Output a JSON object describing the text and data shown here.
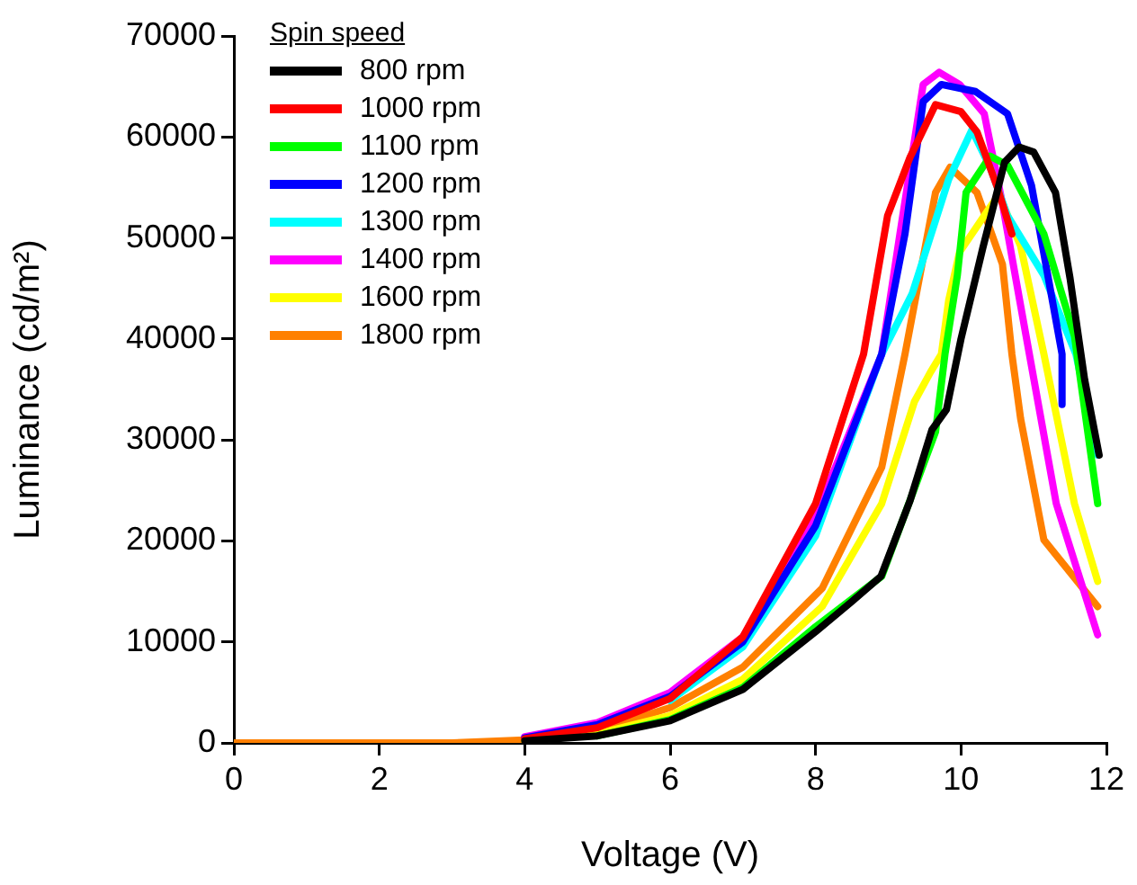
{
  "chart_data": {
    "type": "line",
    "xlabel": "Voltage (V)",
    "ylabel": "Luminance (cd/m²)",
    "legend_title": "Spin speed",
    "legend": "top left",
    "grid": false,
    "marker": "none",
    "line_style": "solid",
    "xlim": [
      0,
      12
    ],
    "xticks": [
      0,
      2,
      4,
      6,
      8,
      10,
      12
    ],
    "ylim": [
      0,
      70000
    ],
    "yticks": [
      0,
      10000,
      20000,
      30000,
      40000,
      50000,
      60000,
      70000
    ],
    "series": [
      {
        "name": "800 rpm",
        "color": "#000000",
        "x": [
          4,
          5,
          6,
          7,
          8,
          8.5,
          8.9,
          9.3,
          9.6,
          9.8,
          10,
          10.3,
          10.6,
          10.8,
          11,
          11.3,
          11.5,
          11.7,
          11.9
        ],
        "values": [
          200,
          700,
          2200,
          5300,
          11000,
          14000,
          16500,
          24000,
          31000,
          33000,
          40000,
          49000,
          57500,
          59000,
          58500,
          54500,
          46000,
          36000,
          28500
        ]
      },
      {
        "name": "1000 rpm",
        "color": "#ff0000",
        "x": [
          4,
          5,
          6,
          7,
          8,
          8.66,
          8.99,
          9.3,
          9.65,
          10,
          10.22,
          10.5,
          10.7
        ],
        "values": [
          400,
          1500,
          4400,
          10500,
          23700,
          38500,
          52200,
          58000,
          63200,
          62500,
          60500,
          55000,
          50400
        ]
      },
      {
        "name": "1100 rpm",
        "color": "#00ff00",
        "x": [
          5,
          6,
          7,
          8,
          8.91,
          9.65,
          9.78,
          9.95,
          10.07,
          10.4,
          10.64,
          11.14,
          11.56,
          11.88
        ],
        "values": [
          700,
          2300,
          5500,
          11500,
          16500,
          30800,
          38500,
          46300,
          54500,
          58100,
          57200,
          50400,
          40300,
          23700
        ]
      },
      {
        "name": "1200 rpm",
        "color": "#0000ff",
        "x": [
          4,
          5,
          6,
          7,
          8,
          8.91,
          9.23,
          9.48,
          9.73,
          10.2,
          10.64,
          10.97,
          11.39,
          11.39
        ],
        "values": [
          500,
          1800,
          4600,
          10000,
          21500,
          38500,
          50400,
          63500,
          65200,
          64500,
          62300,
          55200,
          38500,
          33500
        ]
      },
      {
        "name": "1300 rpm",
        "color": "#00ffff",
        "x": [
          6,
          7,
          8,
          8.91,
          9.33,
          9.83,
          10.15,
          10.4,
          10.64,
          11.14,
          11.58,
          11.88
        ],
        "values": [
          4200,
          9500,
          20500,
          38500,
          44500,
          55800,
          60700,
          57000,
          52200,
          46300,
          38500,
          28500
        ]
      },
      {
        "name": "1400 rpm",
        "color": "#ff00ff",
        "x": [
          4,
          5,
          6,
          7,
          8,
          8.91,
          9.16,
          9.48,
          9.7,
          9.98,
          10.32,
          10.57,
          10.82,
          11.31,
          11.88
        ],
        "values": [
          600,
          2000,
          5000,
          10500,
          22500,
          38500,
          50400,
          65200,
          66400,
          65200,
          62300,
          53400,
          43300,
          23700,
          10700
        ]
      },
      {
        "name": "1600 rpm",
        "color": "#ffff00",
        "x": [
          4,
          5,
          6,
          7,
          8.09,
          8.91,
          9.36,
          9.58,
          9.73,
          9.83,
          9.98,
          10.32,
          10.52,
          10.82,
          11.14,
          11.56,
          11.88
        ],
        "values": [
          200,
          900,
          2700,
          6300,
          13500,
          23700,
          33800,
          36700,
          38500,
          43800,
          48600,
          52200,
          54300,
          49200,
          38500,
          23700,
          16000
        ]
      },
      {
        "name": "1800 rpm",
        "color": "#ff8000",
        "x": [
          0,
          3,
          4,
          5,
          6,
          7,
          8.09,
          8.91,
          9.23,
          9.65,
          9.85,
          10.22,
          10.57,
          10.7,
          10.82,
          11.14,
          11.88
        ],
        "values": [
          0,
          0,
          300,
          1200,
          3500,
          7500,
          15300,
          27300,
          38500,
          54500,
          57000,
          54500,
          47400,
          38500,
          32100,
          20100,
          13500
        ]
      }
    ]
  }
}
